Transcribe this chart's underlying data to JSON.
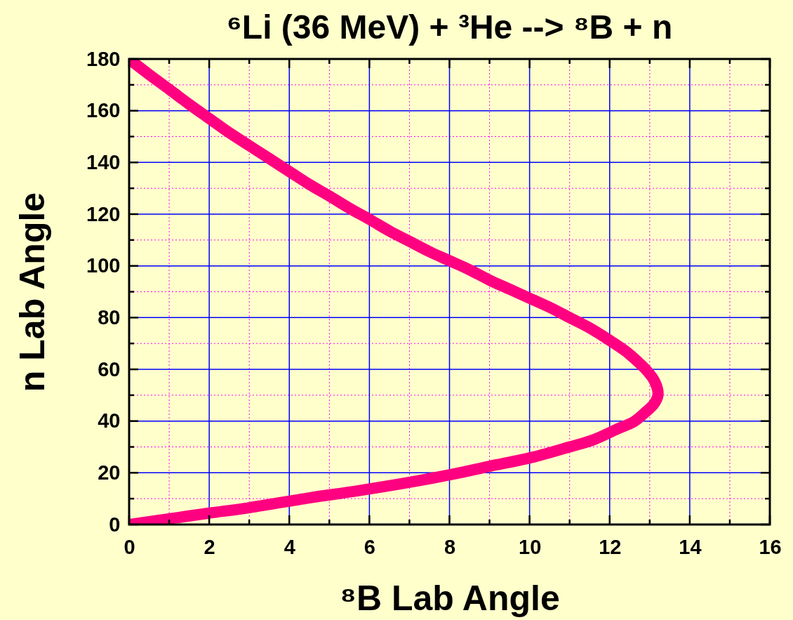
{
  "chart_data": {
    "type": "line",
    "title": "⁶Li (36 MeV) + ³He --> ⁸B + n",
    "xlabel": "⁸B Lab Angle",
    "ylabel": "n Lab Angle",
    "xlim": [
      0,
      16
    ],
    "ylim": [
      0,
      180
    ],
    "xticks": [
      0,
      {
        "value": 1,
        "label": null
      },
      2,
      {
        "value": 3,
        "label": null
      },
      4,
      {
        "value": 5,
        "label": null
      },
      6,
      {
        "value": 7,
        "label": null
      },
      8,
      {
        "value": 9,
        "label": null
      },
      10,
      {
        "value": 11,
        "label": null
      },
      12,
      {
        "value": 13,
        "label": null
      },
      14,
      {
        "value": 15,
        "label": null
      },
      16
    ],
    "yticks": [
      0,
      {
        "value": 10,
        "label": null
      },
      20,
      {
        "value": 30,
        "label": null
      },
      40,
      {
        "value": 50,
        "label": null
      },
      60,
      {
        "value": 70,
        "label": null
      },
      80,
      {
        "value": 90,
        "label": null
      },
      100,
      {
        "value": 110,
        "label": null
      },
      120,
      {
        "value": 130,
        "label": null
      },
      140,
      {
        "value": 150,
        "label": null
      },
      160,
      {
        "value": 170,
        "label": null
      },
      180
    ],
    "grid": true,
    "line_style": "solid",
    "series": [
      {
        "color": "#ff0080",
        "x": [
          0,
          0.5,
          1,
          1.5,
          2,
          2.5,
          3,
          3.5,
          4,
          4.5,
          5,
          5.5,
          6,
          6.5,
          7,
          7.5,
          8,
          8.5,
          9,
          9.5,
          10,
          10.5,
          11,
          11.5,
          12,
          12.4,
          12.7,
          12.9,
          13.1,
          13.2,
          13.2,
          13.1,
          12.9,
          12.6,
          12.2,
          11.6,
          11,
          10.1,
          9,
          8.1,
          7,
          5.7,
          4.5,
          3,
          2,
          1,
          0
        ],
        "values": [
          180,
          174,
          168.3,
          162.5,
          157,
          151.5,
          146.5,
          141.5,
          136.5,
          131.5,
          127,
          122.3,
          118,
          113.5,
          109.5,
          105.5,
          102,
          98.5,
          94.5,
          91,
          87.5,
          84,
          80,
          76,
          71.2,
          67,
          63,
          60,
          56,
          52,
          49.5,
          46.5,
          43.5,
          39.7,
          37,
          32.8,
          30,
          26.1,
          22.5,
          19.5,
          16.3,
          13,
          10.3,
          6.5,
          4.4,
          2.2,
          0
        ]
      }
    ]
  }
}
